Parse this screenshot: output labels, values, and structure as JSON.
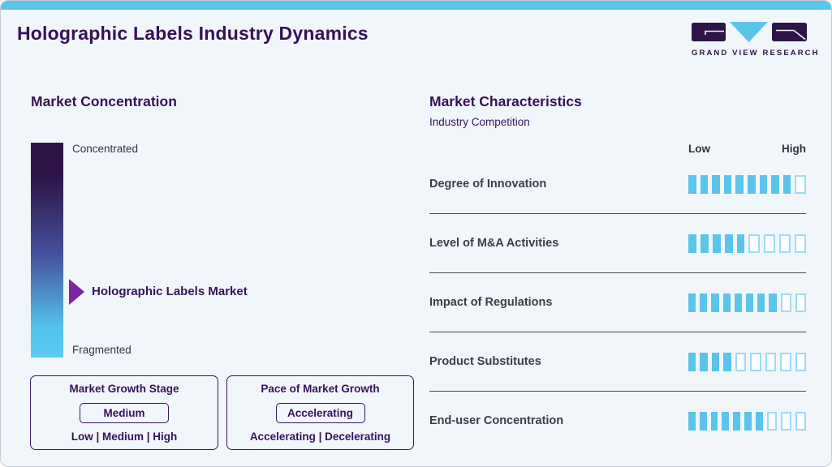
{
  "header": {
    "title": "Holographic Labels Industry Dynamics",
    "logo_text": "GRAND VIEW RESEARCH"
  },
  "left": {
    "heading": "Market Concentration",
    "scale_top_label": "Concentrated",
    "scale_bottom_label": "Fragmented",
    "pointer_label": "Holographic Labels Market",
    "growth_stage_box": {
      "title": "Market Growth Stage",
      "value": "Medium",
      "options": "Low | Medium | High"
    },
    "pace_box": {
      "title": "Pace of Market Growth",
      "value": "Accelerating",
      "options": "Accelerating | Decelerating"
    }
  },
  "right": {
    "heading": "Market Characteristics",
    "subheading": "Industry Competition",
    "scale_low": "Low",
    "scale_high": "High"
  },
  "chart_data": {
    "type": "bar",
    "title": "Market Characteristics - Industry Competition",
    "categories": [
      "Degree of Innovation",
      "Level of M&A Activities",
      "Impact of Regulations",
      "Product Substitutes",
      "End-user Concentration"
    ],
    "values": [
      9,
      5,
      8,
      4,
      7
    ],
    "totals": [
      10,
      9,
      10,
      9,
      10
    ],
    "scale_labels": [
      "Low",
      "High"
    ],
    "xlabel": "",
    "ylabel": "",
    "legend": "off",
    "colors": {
      "filled_segment": "#5BC4EA",
      "empty_segment_border": "#9EDBF4"
    }
  },
  "colors": {
    "brand_blue": "#5BC4EA",
    "brand_purple": "#371257",
    "arrow_purple": "#7C26A6",
    "gradient_top": "#2E1547",
    "gradient_bottom": "#5BCBF5",
    "background": "#F1F6FA"
  }
}
